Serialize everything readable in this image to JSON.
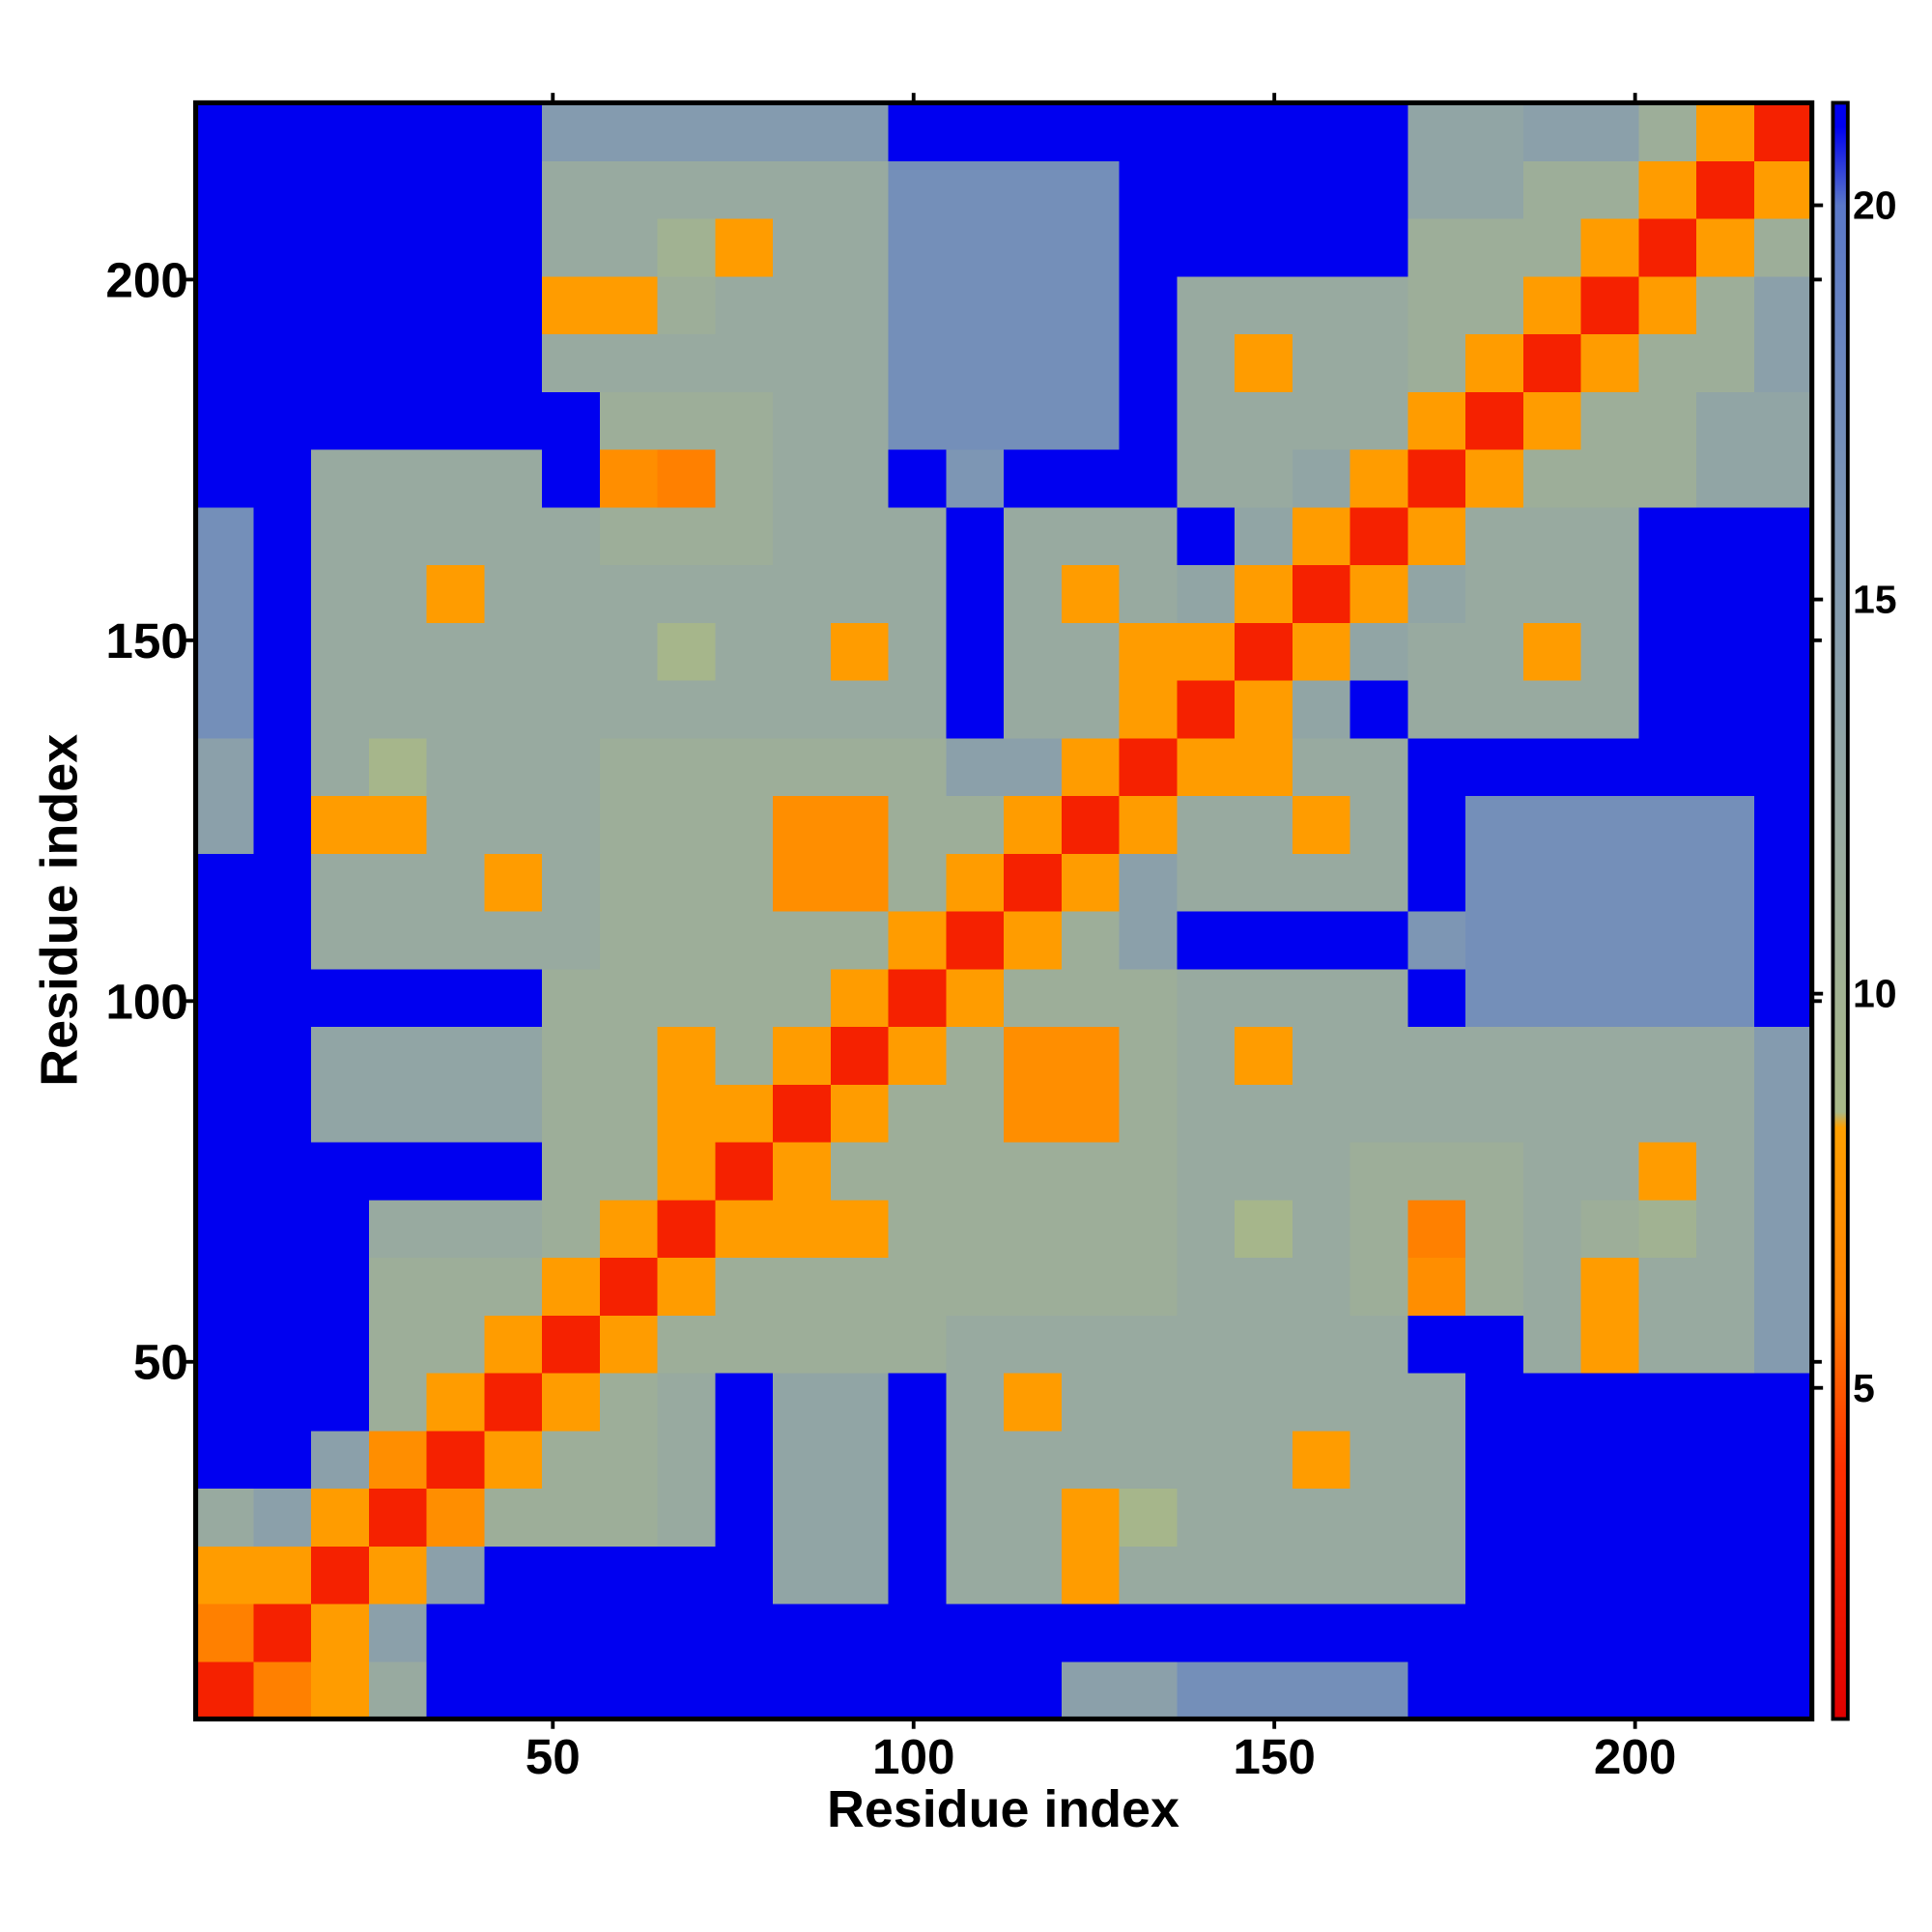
{
  "chart_data": {
    "type": "heatmap",
    "xlabel": "Residue index",
    "ylabel": "Residue index",
    "bins": [
      0.5,
      8.5,
      16.5,
      24.5,
      32.5,
      40.5,
      48.5,
      56.5,
      64.5,
      72.5,
      80.5,
      88.5,
      96.5,
      104.5,
      112.5,
      120.5,
      128.5,
      136.5,
      144.5,
      152.5,
      160.5,
      168.5,
      176.5,
      184.5,
      192.5,
      200.5,
      208.5,
      216.5,
      224.5
    ],
    "z": [
      [
        3,
        6,
        8,
        12,
        21,
        21,
        21,
        21,
        21,
        21,
        21,
        21,
        21,
        21,
        21,
        14,
        14,
        17,
        17,
        17,
        17,
        21,
        21,
        21,
        21,
        21,
        21,
        21
      ],
      [
        6,
        3,
        8,
        14,
        21,
        21,
        21,
        21,
        21,
        21,
        21,
        21,
        21,
        21,
        21,
        21,
        21,
        21,
        21,
        21,
        21,
        21,
        21,
        21,
        21,
        21,
        21,
        21
      ],
      [
        8,
        8,
        3,
        8,
        14,
        21,
        21,
        21,
        21,
        21,
        13,
        13,
        21,
        12,
        12,
        8,
        12,
        12,
        12,
        12,
        12,
        12,
        21,
        21,
        21,
        21,
        21,
        21
      ],
      [
        12,
        14,
        8,
        3,
        7,
        11,
        11,
        11,
        12,
        21,
        13,
        13,
        21,
        12,
        12,
        8,
        9,
        12,
        12,
        12,
        12,
        12,
        21,
        21,
        21,
        21,
        21,
        21
      ],
      [
        21,
        21,
        14,
        7,
        3,
        8,
        11,
        11,
        12,
        21,
        13,
        13,
        21,
        12,
        12,
        12,
        12,
        12,
        12,
        8,
        12,
        12,
        21,
        21,
        21,
        21,
        21,
        21
      ],
      [
        21,
        21,
        21,
        11,
        8,
        3,
        8,
        11,
        12,
        21,
        13,
        13,
        21,
        12,
        8,
        12,
        12,
        12,
        12,
        12,
        12,
        12,
        21,
        21,
        21,
        21,
        21,
        21
      ],
      [
        21,
        21,
        21,
        11,
        11,
        8,
        3,
        8,
        11,
        11,
        11,
        11,
        11,
        12,
        12,
        12,
        12,
        12,
        12,
        12,
        12,
        21,
        21,
        12,
        8,
        12,
        12,
        15
      ],
      [
        21,
        21,
        21,
        11,
        11,
        11,
        8,
        3,
        8,
        11,
        11,
        11,
        11,
        11,
        11,
        11,
        11,
        12,
        12,
        12,
        11,
        7,
        11,
        12,
        8,
        12,
        12,
        15
      ],
      [
        21,
        21,
        21,
        12,
        12,
        12,
        11,
        8,
        3,
        8,
        8,
        8,
        11,
        11,
        11,
        11,
        11,
        12,
        9,
        12,
        11,
        6,
        11,
        12,
        11,
        10,
        12,
        15
      ],
      [
        21,
        21,
        21,
        21,
        21,
        21,
        11,
        11,
        8,
        3,
        8,
        11,
        11,
        11,
        11,
        11,
        11,
        12,
        12,
        12,
        11,
        11,
        11,
        12,
        12,
        8,
        12,
        15
      ],
      [
        21,
        21,
        13,
        13,
        13,
        13,
        11,
        11,
        8,
        8,
        3,
        8,
        11,
        11,
        7,
        7,
        11,
        12,
        12,
        12,
        12,
        12,
        12,
        12,
        12,
        12,
        12,
        15
      ],
      [
        21,
        21,
        13,
        13,
        13,
        13,
        11,
        11,
        8,
        11,
        8,
        3,
        8,
        11,
        7,
        7,
        11,
        12,
        8,
        12,
        12,
        12,
        12,
        12,
        12,
        12,
        12,
        15
      ],
      [
        21,
        21,
        21,
        21,
        21,
        21,
        11,
        11,
        11,
        11,
        11,
        8,
        3,
        8,
        11,
        11,
        11,
        12,
        12,
        12,
        12,
        21,
        17,
        17,
        17,
        17,
        17,
        21
      ],
      [
        21,
        21,
        12,
        12,
        12,
        12,
        12,
        11,
        11,
        11,
        11,
        11,
        8,
        3,
        8,
        11,
        14,
        21,
        21,
        21,
        21,
        16,
        17,
        17,
        17,
        17,
        17,
        21
      ],
      [
        21,
        21,
        12,
        12,
        12,
        8,
        12,
        11,
        11,
        11,
        7,
        7,
        11,
        8,
        3,
        8,
        14,
        12,
        12,
        12,
        12,
        21,
        17,
        17,
        17,
        17,
        17,
        21
      ],
      [
        14,
        21,
        8,
        8,
        12,
        12,
        12,
        11,
        11,
        11,
        7,
        7,
        11,
        11,
        8,
        3,
        8,
        12,
        12,
        8,
        12,
        21,
        17,
        17,
        17,
        17,
        17,
        21
      ],
      [
        14,
        21,
        12,
        9,
        12,
        12,
        12,
        11,
        11,
        11,
        11,
        11,
        11,
        14,
        14,
        8,
        3,
        8,
        8,
        12,
        12,
        21,
        21,
        21,
        21,
        21,
        21,
        21
      ],
      [
        17,
        21,
        12,
        12,
        12,
        12,
        12,
        12,
        12,
        12,
        12,
        12,
        12,
        21,
        12,
        12,
        8,
        3,
        8,
        13,
        21,
        12,
        12,
        12,
        12,
        21,
        21,
        21
      ],
      [
        17,
        21,
        12,
        12,
        12,
        12,
        12,
        12,
        9,
        12,
        12,
        8,
        12,
        21,
        12,
        12,
        8,
        8,
        3,
        8,
        13,
        12,
        12,
        8,
        12,
        21,
        21,
        21
      ],
      [
        17,
        21,
        12,
        12,
        8,
        12,
        12,
        12,
        12,
        12,
        12,
        12,
        12,
        21,
        12,
        8,
        12,
        13,
        8,
        3,
        8,
        13,
        12,
        12,
        12,
        21,
        21,
        21
      ],
      [
        17,
        21,
        12,
        12,
        12,
        12,
        12,
        11,
        11,
        11,
        12,
        12,
        12,
        21,
        12,
        12,
        12,
        21,
        13,
        8,
        3,
        8,
        12,
        12,
        12,
        21,
        21,
        21
      ],
      [
        21,
        21,
        12,
        12,
        12,
        12,
        21,
        7,
        6,
        11,
        12,
        12,
        21,
        16,
        21,
        21,
        21,
        12,
        12,
        13,
        8,
        3,
        8,
        11,
        11,
        11,
        13,
        13
      ],
      [
        21,
        21,
        21,
        21,
        21,
        21,
        21,
        11,
        11,
        11,
        12,
        12,
        17,
        17,
        17,
        17,
        21,
        12,
        12,
        12,
        12,
        8,
        3,
        8,
        11,
        11,
        13,
        13
      ],
      [
        21,
        21,
        21,
        21,
        21,
        21,
        12,
        12,
        12,
        12,
        12,
        12,
        17,
        17,
        17,
        17,
        21,
        12,
        8,
        12,
        12,
        11,
        8,
        3,
        8,
        11,
        11,
        14
      ],
      [
        21,
        21,
        21,
        21,
        21,
        21,
        8,
        8,
        11,
        12,
        12,
        12,
        17,
        17,
        17,
        17,
        21,
        12,
        12,
        12,
        12,
        11,
        11,
        8,
        3,
        8,
        11,
        14
      ],
      [
        21,
        21,
        21,
        21,
        21,
        21,
        12,
        12,
        10,
        8,
        12,
        12,
        17,
        17,
        17,
        17,
        21,
        21,
        21,
        21,
        21,
        11,
        11,
        11,
        8,
        3,
        8,
        11
      ],
      [
        21,
        21,
        21,
        21,
        21,
        21,
        12,
        12,
        12,
        12,
        12,
        12,
        17,
        17,
        17,
        17,
        21,
        21,
        21,
        21,
        21,
        13,
        13,
        11,
        11,
        8,
        3,
        8
      ],
      [
        21,
        21,
        21,
        21,
        21,
        21,
        15,
        15,
        15,
        15,
        15,
        15,
        21,
        21,
        21,
        21,
        21,
        21,
        21,
        21,
        21,
        13,
        13,
        14,
        14,
        11,
        8,
        3
      ]
    ],
    "xlim": [
      0.5,
      224.5
    ],
    "ylim": [
      0.5,
      224.5
    ],
    "xticks": [
      50,
      100,
      150,
      200
    ],
    "yticks": [
      50,
      100,
      150,
      200
    ],
    "colorbar": {
      "lim": [
        0.8,
        21.3
      ],
      "ticks": [
        5,
        10,
        15,
        20
      ]
    },
    "colorscale": [
      [
        0.8,
        "#e00000"
      ],
      [
        4,
        "#ff3000"
      ],
      [
        6,
        "#ff8000"
      ],
      [
        8.3,
        "#ffa000"
      ],
      [
        8.5,
        "#a8b888"
      ],
      [
        12,
        "#98aaa0"
      ],
      [
        16,
        "#7d96b4"
      ],
      [
        20,
        "#5a78c8"
      ],
      [
        21,
        "#0000f0"
      ],
      [
        21.3,
        "#0000f0"
      ]
    ]
  }
}
